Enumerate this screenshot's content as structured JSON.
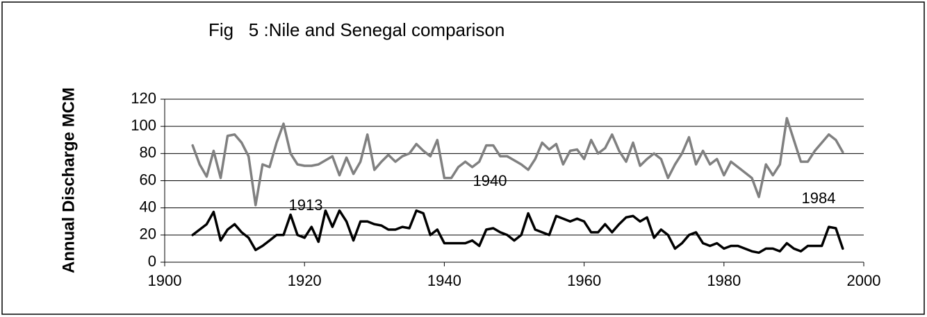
{
  "chart_data": {
    "type": "line",
    "title": "Fig   5 :Nile and Senegal comparison",
    "y_label": "Annual Discharge MCM",
    "annotations": [
      "1913",
      "1940",
      "1984"
    ],
    "x": [
      1904,
      1905,
      1906,
      1907,
      1908,
      1909,
      1910,
      1911,
      1912,
      1913,
      1914,
      1915,
      1916,
      1917,
      1918,
      1919,
      1920,
      1921,
      1922,
      1923,
      1924,
      1925,
      1926,
      1927,
      1928,
      1929,
      1930,
      1931,
      1932,
      1933,
      1934,
      1935,
      1936,
      1937,
      1938,
      1939,
      1940,
      1941,
      1942,
      1943,
      1944,
      1945,
      1946,
      1947,
      1948,
      1949,
      1950,
      1951,
      1952,
      1953,
      1954,
      1955,
      1956,
      1957,
      1958,
      1959,
      1960,
      1961,
      1962,
      1963,
      1964,
      1965,
      1966,
      1967,
      1968,
      1969,
      1970,
      1971,
      1972,
      1973,
      1974,
      1975,
      1976,
      1977,
      1978,
      1979,
      1980,
      1981,
      1982,
      1983,
      1984,
      1985,
      1986,
      1987,
      1988,
      1989,
      1990,
      1991,
      1992,
      1993,
      1994,
      1995,
      1996,
      1997
    ],
    "series": [
      {
        "color": "#808080",
        "values": [
          86,
          72,
          63,
          82,
          62,
          93,
          94,
          88,
          78,
          42,
          72,
          70,
          88,
          102,
          80,
          72,
          71,
          71,
          72,
          75,
          78,
          64,
          77,
          65,
          74,
          94,
          68,
          74,
          79,
          74,
          78,
          80,
          87,
          82,
          78,
          90,
          62,
          62,
          70,
          74,
          70,
          74,
          86,
          86,
          78,
          78,
          75,
          72,
          68,
          76,
          88,
          83,
          87,
          72,
          82,
          83,
          76,
          90,
          80,
          84,
          94,
          82,
          74,
          88,
          71,
          76,
          80,
          76,
          62,
          72,
          80,
          92,
          72,
          82,
          72,
          76,
          64,
          74,
          70,
          66,
          62,
          48,
          72,
          64,
          72,
          106,
          90,
          74,
          74,
          82,
          88,
          94,
          90,
          81
        ]
      },
      {
        "color": "#000000",
        "values": [
          20,
          24,
          28,
          37,
          16,
          24,
          28,
          22,
          18,
          9,
          12,
          16,
          20,
          20,
          35,
          20,
          18,
          26,
          15,
          38,
          26,
          38,
          30,
          16,
          30,
          30,
          28,
          27,
          24,
          24,
          26,
          25,
          38,
          36,
          20,
          24,
          14,
          14,
          14,
          14,
          16,
          12,
          24,
          25,
          22,
          20,
          16,
          20,
          36,
          24,
          22,
          20,
          34,
          32,
          30,
          32,
          30,
          22,
          22,
          28,
          22,
          28,
          33,
          34,
          30,
          33,
          18,
          24,
          20,
          10,
          14,
          20,
          22,
          14,
          12,
          14,
          10,
          12,
          12,
          10,
          8,
          7,
          10,
          10,
          8,
          14,
          10,
          8,
          12,
          12,
          12,
          26,
          25,
          10
        ]
      }
    ],
    "xlim": [
      1900,
      2000
    ],
    "xticks": [
      1900,
      1920,
      1940,
      1960,
      1980,
      2000
    ],
    "ylim": [
      0,
      120
    ],
    "yticks": [
      0,
      20,
      40,
      60,
      80,
      100,
      120
    ],
    "grid": true
  }
}
